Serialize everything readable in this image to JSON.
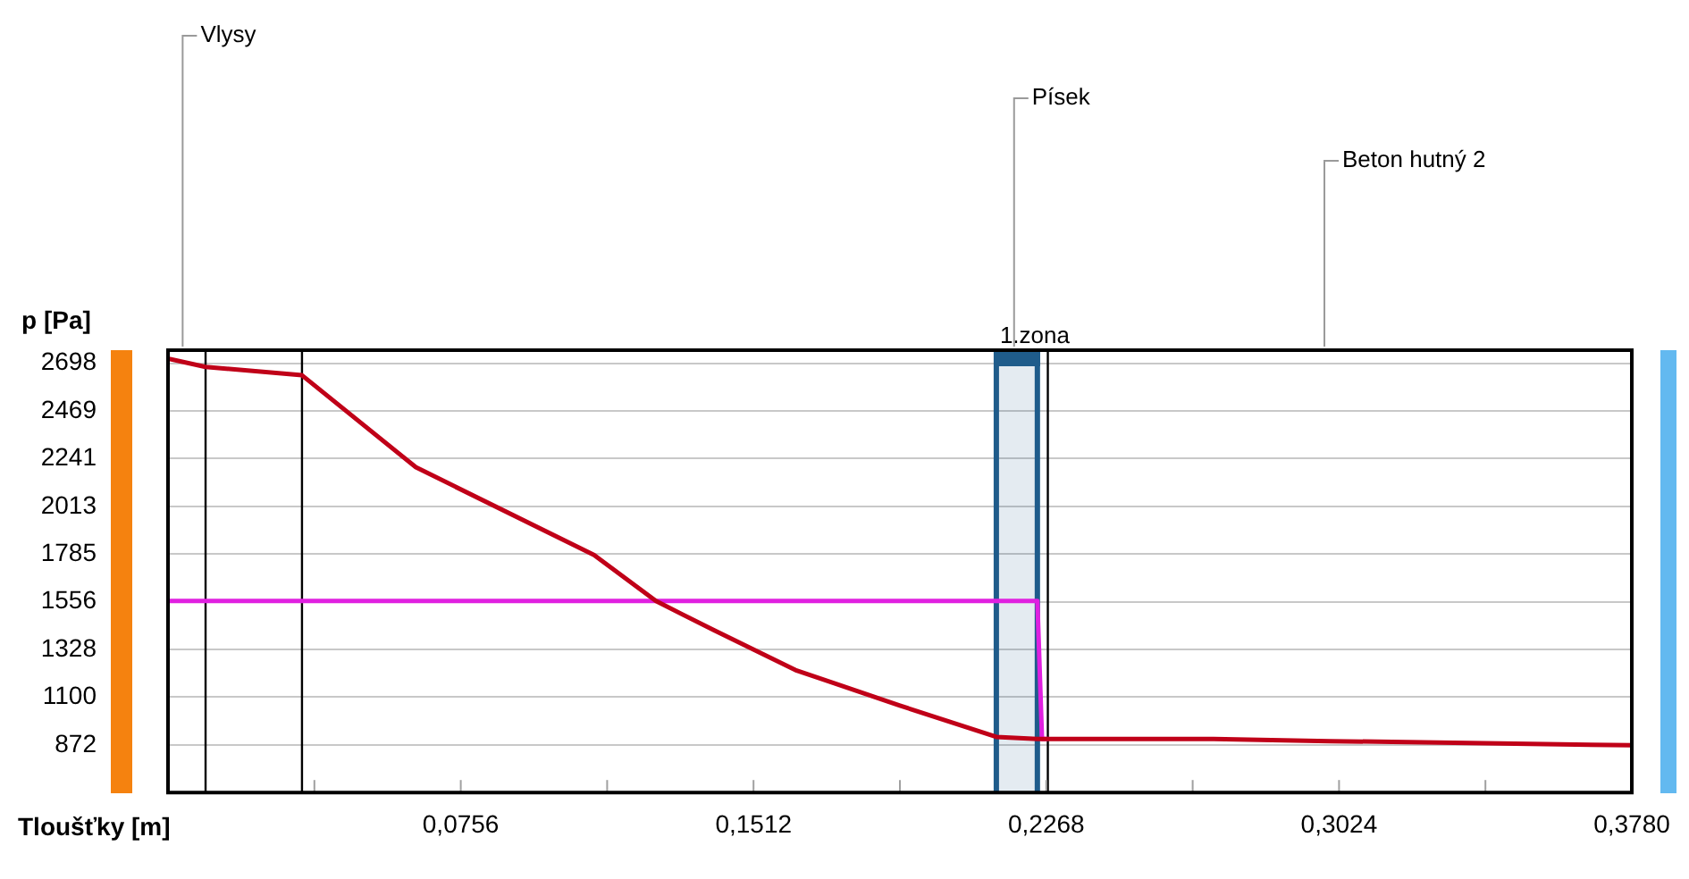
{
  "chart_data": {
    "type": "line",
    "xlabel": "Tloušťky [m]",
    "ylabel": "p [Pa]",
    "xlim": [
      0,
      0.378
    ],
    "xticks": [
      {
        "value": 0.0378,
        "label": null
      },
      {
        "value": 0.0756,
        "label": "0,0756"
      },
      {
        "value": 0.1134,
        "label": null
      },
      {
        "value": 0.1512,
        "label": "0,1512"
      },
      {
        "value": 0.189,
        "label": null
      },
      {
        "value": 0.2268,
        "label": "0,2268"
      },
      {
        "value": 0.2646,
        "label": null
      },
      {
        "value": 0.3024,
        "label": "0,3024"
      },
      {
        "value": 0.3402,
        "label": null
      },
      {
        "value": 0.378,
        "label": "0,3780"
      }
    ],
    "ylim": [
      644,
      2760
    ],
    "yticks": [
      872,
      1100,
      1328,
      1556,
      1785,
      2013,
      2241,
      2469,
      2698
    ],
    "grid": "y",
    "legend": false,
    "marker": "none",
    "line_style": "solid",
    "series": [
      {
        "color": "#c00018",
        "x": [
          0,
          0.0097,
          0.0346,
          0.064,
          0.11,
          0.126,
          0.141,
          0.162,
          0.189,
          0.2139,
          0.2245,
          0.27,
          0.3,
          0.34,
          0.378
        ],
        "values": [
          2720,
          2680,
          2640,
          2200,
          1780,
          1560,
          1420,
          1230,
          1060,
          910,
          900,
          900,
          890,
          880,
          870
        ]
      },
      {
        "color": "#e020e0",
        "x": [
          0,
          0.2245,
          0.2257,
          0.2272
        ],
        "values": [
          1560,
          1560,
          900,
          900
        ]
      }
    ],
    "ref_lines": [
      {
        "axis": "x",
        "value": 0.0097,
        "color": "#000000"
      },
      {
        "axis": "x",
        "value": 0.0346,
        "color": "#000000"
      },
      {
        "axis": "x",
        "value": 0.2139,
        "color": "#1f5c8b"
      },
      {
        "axis": "x",
        "value": 0.2245,
        "color": "#1f5c8b"
      },
      {
        "axis": "x",
        "value": 0.2272,
        "color": "#000000"
      }
    ],
    "bands": [
      {
        "axis": "x",
        "from": 0.2139,
        "to": 0.2245,
        "label": "1.zona",
        "color": "#1f5c8b"
      }
    ],
    "annotations": [
      "Vlysy",
      "Písek",
      "Beton hutný 2"
    ]
  }
}
